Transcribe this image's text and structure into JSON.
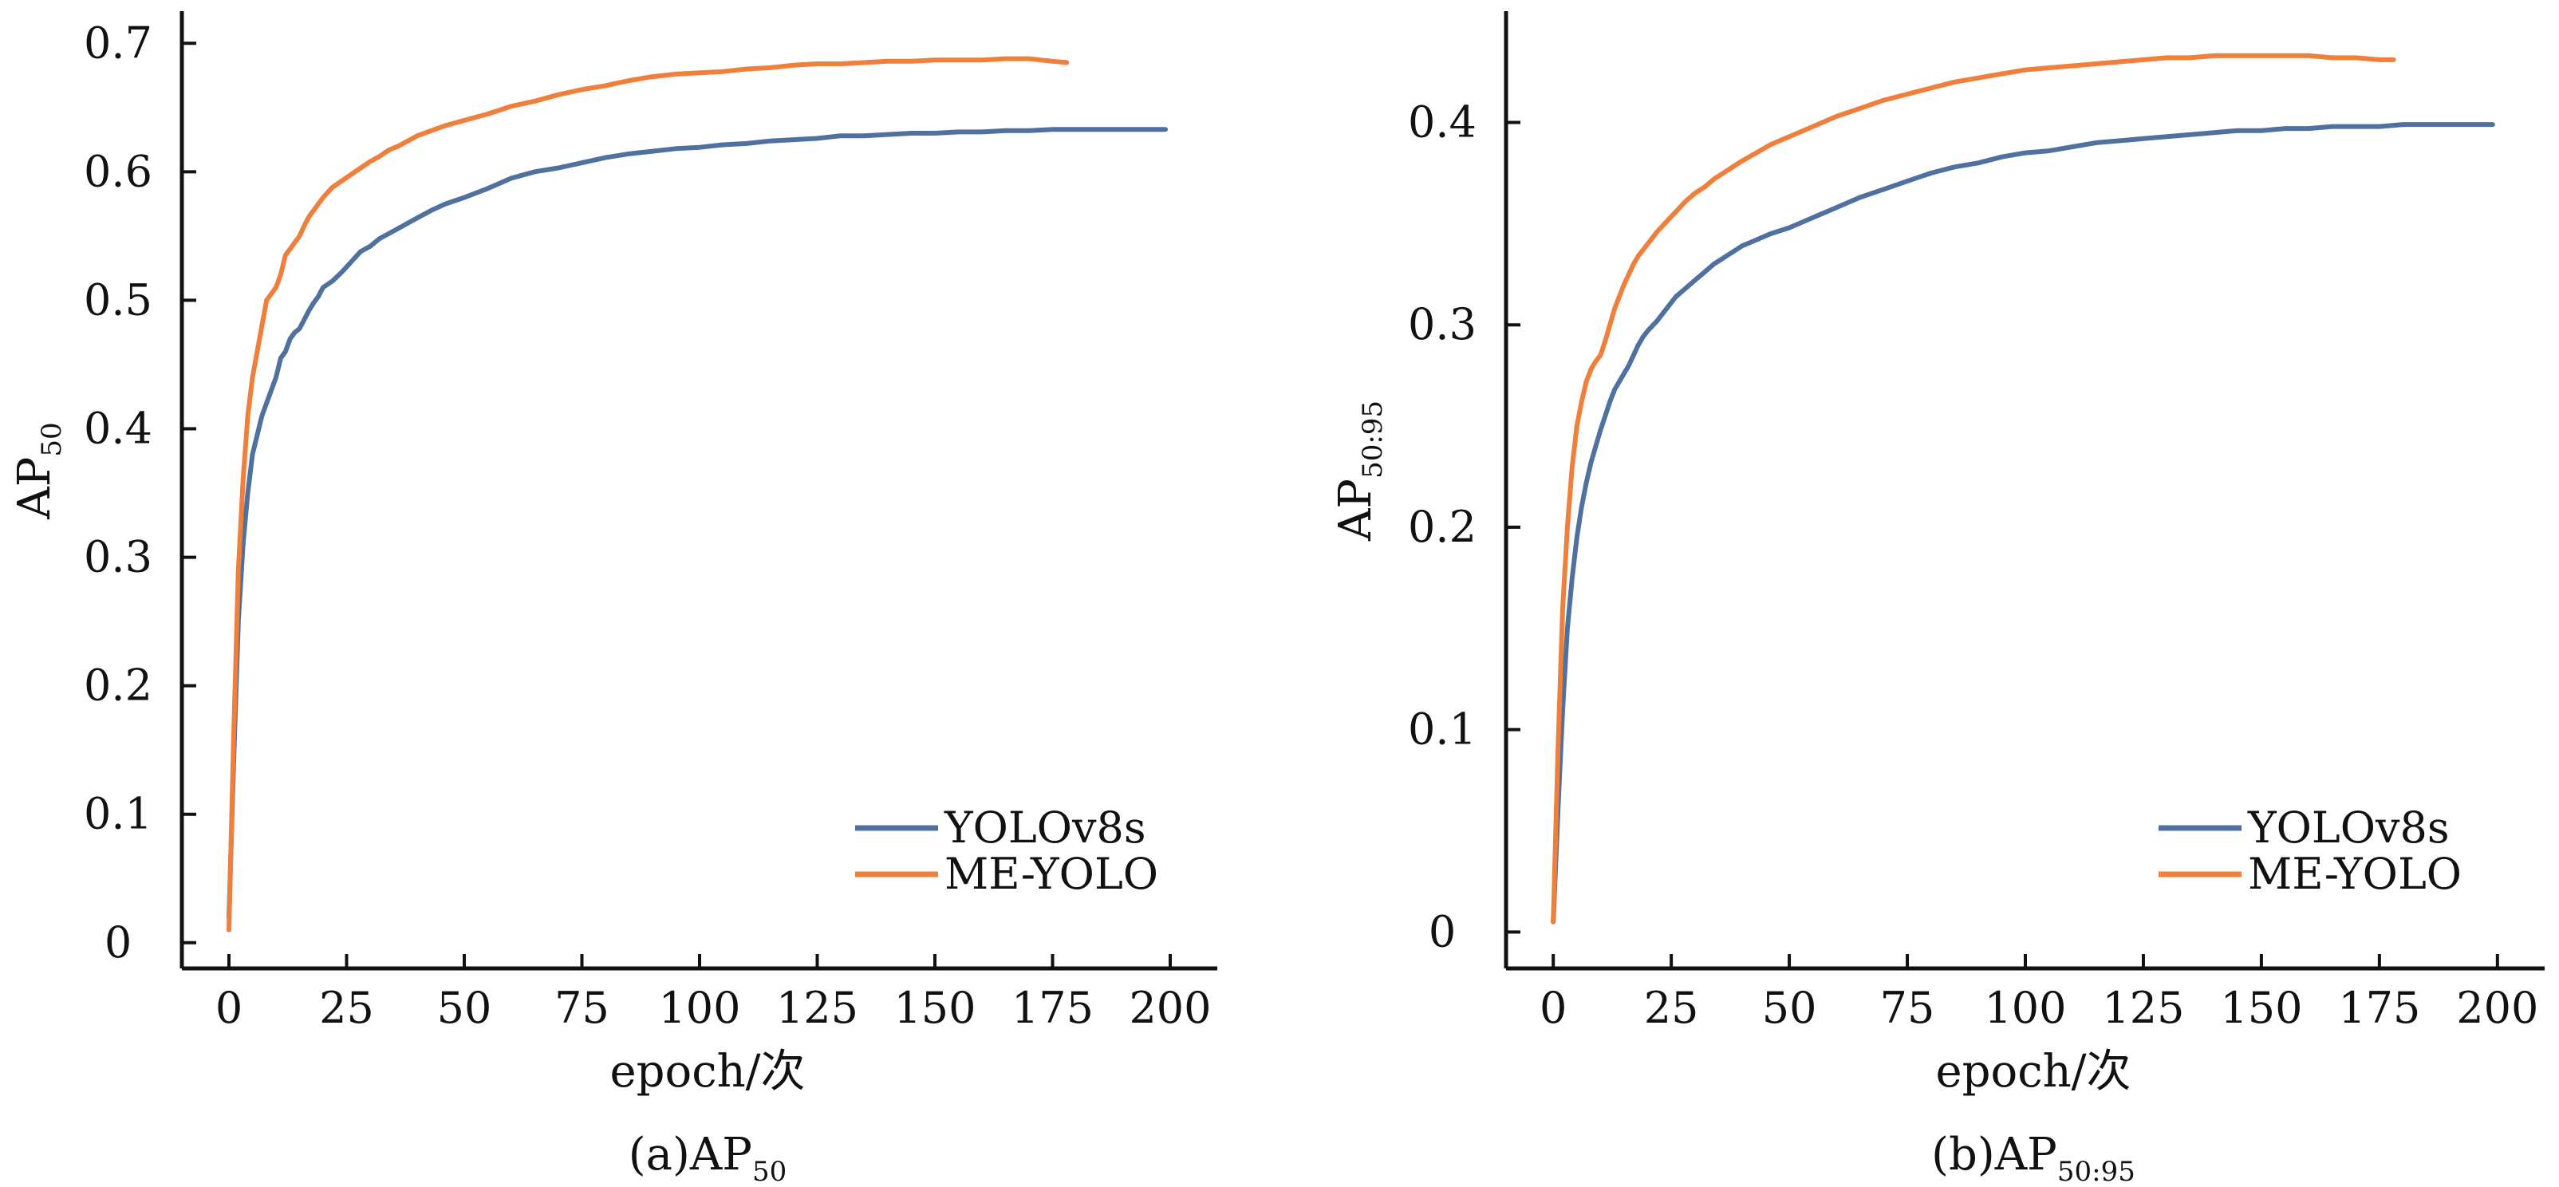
{
  "colors": {
    "yolov8s": "#4f71a0",
    "me_yolo": "#f07f3c",
    "axis": "#111111"
  },
  "chart_data": [
    {
      "type": "line",
      "caption_prefix": "(a)AP",
      "caption_sub": "50",
      "xlabel": "epoch/次",
      "ylabel_main": "AP",
      "ylabel_sub": "50",
      "xlim": [
        -10,
        210
      ],
      "ylim": [
        -0.02,
        0.725
      ],
      "xticks": [
        0,
        25,
        50,
        75,
        100,
        125,
        150,
        175,
        200
      ],
      "xtick_labels": [
        "0",
        "25",
        "50",
        "75",
        "100",
        "125",
        "150",
        "175",
        "200"
      ],
      "yticks": [
        0,
        0.1,
        0.2,
        0.3,
        0.4,
        0.5,
        0.6,
        0.7
      ],
      "ytick_labels": [
        "0",
        "0.1",
        "0.2",
        "0.3",
        "0.4",
        "0.5",
        "0.6",
        "0.7"
      ],
      "grid": false,
      "legend_position": "lower-right",
      "series": [
        {
          "name": "YOLOv8s",
          "color": "#4f71a0",
          "x": [
            0,
            1,
            2,
            3,
            4,
            5,
            6,
            7,
            8,
            9,
            10,
            11,
            12,
            13,
            14,
            15,
            16,
            17,
            18,
            19,
            20,
            22,
            24,
            26,
            28,
            30,
            32,
            34,
            36,
            38,
            40,
            43,
            46,
            50,
            55,
            60,
            65,
            70,
            75,
            80,
            85,
            90,
            95,
            100,
            105,
            110,
            115,
            120,
            125,
            130,
            135,
            140,
            145,
            150,
            155,
            160,
            165,
            170,
            175,
            180,
            185,
            190,
            195,
            199
          ],
          "y": [
            0.02,
            0.14,
            0.25,
            0.31,
            0.35,
            0.38,
            0.395,
            0.41,
            0.42,
            0.43,
            0.44,
            0.455,
            0.46,
            0.47,
            0.475,
            0.478,
            0.485,
            0.492,
            0.498,
            0.503,
            0.51,
            0.515,
            0.522,
            0.53,
            0.538,
            0.542,
            0.548,
            0.552,
            0.556,
            0.56,
            0.564,
            0.57,
            0.575,
            0.58,
            0.587,
            0.595,
            0.6,
            0.603,
            0.607,
            0.611,
            0.614,
            0.616,
            0.618,
            0.619,
            0.621,
            0.622,
            0.624,
            0.625,
            0.626,
            0.628,
            0.628,
            0.629,
            0.63,
            0.63,
            0.631,
            0.631,
            0.632,
            0.632,
            0.633,
            0.633,
            0.633,
            0.633,
            0.633,
            0.633
          ]
        },
        {
          "name": "ME-YOLO",
          "color": "#f07f3c",
          "x": [
            0,
            1,
            2,
            3,
            4,
            5,
            6,
            7,
            8,
            9,
            10,
            11,
            12,
            13,
            14,
            15,
            16,
            17,
            18,
            20,
            22,
            24,
            26,
            28,
            30,
            32,
            34,
            36,
            38,
            40,
            43,
            46,
            50,
            55,
            60,
            65,
            70,
            75,
            80,
            85,
            90,
            95,
            100,
            105,
            110,
            115,
            120,
            125,
            130,
            135,
            140,
            145,
            150,
            155,
            160,
            165,
            170,
            175,
            178
          ],
          "y": [
            0.01,
            0.16,
            0.29,
            0.36,
            0.41,
            0.44,
            0.46,
            0.48,
            0.5,
            0.505,
            0.51,
            0.52,
            0.535,
            0.54,
            0.545,
            0.55,
            0.558,
            0.565,
            0.57,
            0.58,
            0.588,
            0.593,
            0.598,
            0.603,
            0.608,
            0.612,
            0.617,
            0.62,
            0.624,
            0.628,
            0.632,
            0.636,
            0.64,
            0.645,
            0.651,
            0.655,
            0.66,
            0.664,
            0.667,
            0.671,
            0.674,
            0.676,
            0.677,
            0.678,
            0.68,
            0.681,
            0.683,
            0.684,
            0.684,
            0.685,
            0.686,
            0.686,
            0.687,
            0.687,
            0.687,
            0.688,
            0.688,
            0.686,
            0.685
          ]
        }
      ]
    },
    {
      "type": "line",
      "caption_prefix": "(b)AP",
      "caption_sub": "50:95",
      "xlabel": "epoch/次",
      "ylabel_main": "AP",
      "ylabel_sub": "50:95",
      "xlim": [
        -10,
        210
      ],
      "ylim": [
        -0.018,
        0.455
      ],
      "xticks": [
        0,
        25,
        50,
        75,
        100,
        125,
        150,
        175,
        200
      ],
      "xtick_labels": [
        "0",
        "25",
        "50",
        "75",
        "100",
        "125",
        "150",
        "175",
        "200"
      ],
      "yticks": [
        0,
        0.1,
        0.2,
        0.3,
        0.4
      ],
      "ytick_labels": [
        "0",
        "0.1",
        "0.2",
        "0.3",
        "0.4"
      ],
      "grid": false,
      "legend_position": "lower-right",
      "series": [
        {
          "name": "YOLOv8s",
          "color": "#4f71a0",
          "x": [
            0,
            1,
            2,
            3,
            4,
            5,
            6,
            7,
            8,
            9,
            10,
            11,
            12,
            13,
            14,
            15,
            16,
            17,
            18,
            19,
            20,
            22,
            24,
            26,
            28,
            30,
            32,
            34,
            36,
            38,
            40,
            43,
            46,
            50,
            55,
            60,
            65,
            70,
            75,
            80,
            85,
            90,
            95,
            100,
            105,
            110,
            115,
            120,
            125,
            130,
            135,
            140,
            145,
            150,
            155,
            160,
            165,
            170,
            175,
            180,
            185,
            190,
            195,
            199
          ],
          "y": [
            0.005,
            0.06,
            0.11,
            0.15,
            0.175,
            0.195,
            0.21,
            0.222,
            0.232,
            0.24,
            0.248,
            0.255,
            0.262,
            0.268,
            0.272,
            0.276,
            0.28,
            0.285,
            0.29,
            0.294,
            0.297,
            0.302,
            0.308,
            0.314,
            0.318,
            0.322,
            0.326,
            0.33,
            0.333,
            0.336,
            0.339,
            0.342,
            0.345,
            0.348,
            0.353,
            0.358,
            0.363,
            0.367,
            0.371,
            0.375,
            0.378,
            0.38,
            0.383,
            0.385,
            0.386,
            0.388,
            0.39,
            0.391,
            0.392,
            0.393,
            0.394,
            0.395,
            0.396,
            0.396,
            0.397,
            0.397,
            0.398,
            0.398,
            0.398,
            0.399,
            0.399,
            0.399,
            0.399,
            0.399
          ]
        },
        {
          "name": "ME-YOLO",
          "color": "#f07f3c",
          "x": [
            0,
            1,
            2,
            3,
            4,
            5,
            6,
            7,
            8,
            9,
            10,
            11,
            12,
            13,
            14,
            15,
            16,
            17,
            18,
            20,
            22,
            24,
            26,
            28,
            30,
            32,
            34,
            36,
            38,
            40,
            43,
            46,
            50,
            55,
            60,
            65,
            70,
            75,
            80,
            85,
            90,
            95,
            100,
            105,
            110,
            115,
            120,
            125,
            130,
            135,
            140,
            145,
            150,
            155,
            160,
            165,
            170,
            175,
            178
          ],
          "y": [
            0.005,
            0.09,
            0.16,
            0.2,
            0.23,
            0.25,
            0.262,
            0.272,
            0.278,
            0.282,
            0.285,
            0.292,
            0.3,
            0.308,
            0.314,
            0.32,
            0.325,
            0.33,
            0.334,
            0.34,
            0.346,
            0.351,
            0.356,
            0.361,
            0.365,
            0.368,
            0.372,
            0.375,
            0.378,
            0.381,
            0.385,
            0.389,
            0.393,
            0.398,
            0.403,
            0.407,
            0.411,
            0.414,
            0.417,
            0.42,
            0.422,
            0.424,
            0.426,
            0.427,
            0.428,
            0.429,
            0.43,
            0.431,
            0.432,
            0.432,
            0.433,
            0.433,
            0.433,
            0.433,
            0.433,
            0.432,
            0.432,
            0.431,
            0.431
          ]
        }
      ]
    }
  ]
}
